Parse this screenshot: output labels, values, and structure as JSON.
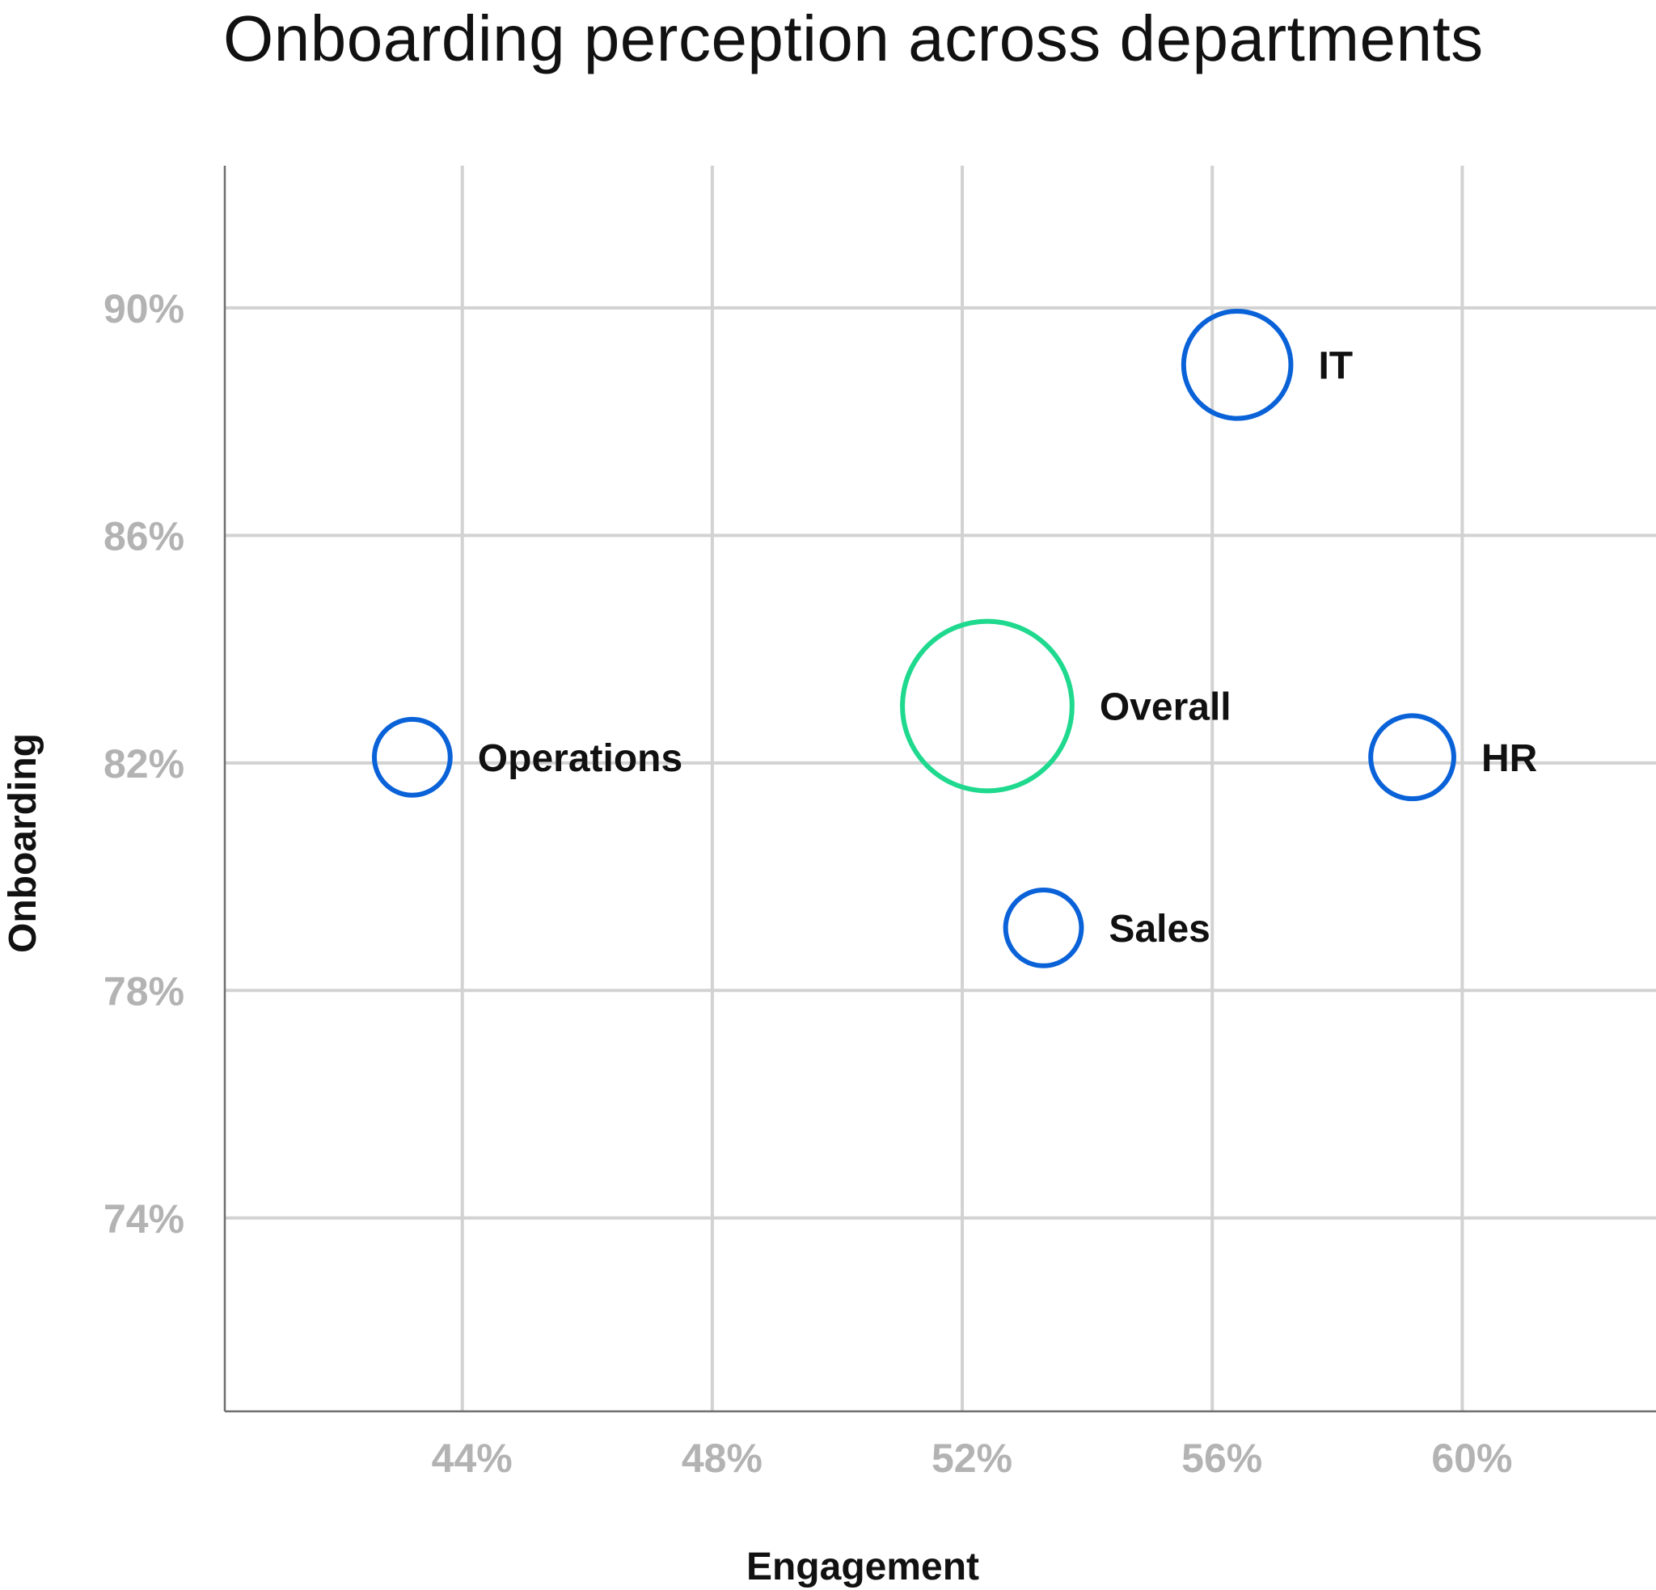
{
  "chart_data": {
    "type": "scatter",
    "title": "Onboarding perception across departments",
    "xlabel": "Engagement",
    "ylabel": "Onboarding",
    "xlim": [
      40.2,
      63.1
    ],
    "ylim": [
      70.6,
      92.5
    ],
    "xticks": [
      44,
      48,
      52,
      56,
      60
    ],
    "yticks": [
      74,
      78,
      82,
      86,
      90
    ],
    "tick_suffix": "%",
    "grid": true,
    "points": [
      {
        "label": "Operations",
        "x": 43.2,
        "y": 82.1,
        "size": 1,
        "color": "#0a62d8"
      },
      {
        "label": "Overall",
        "x": 52.4,
        "y": 83.0,
        "size": 5,
        "color": "#1fd98e"
      },
      {
        "label": "Sales",
        "x": 53.3,
        "y": 79.1,
        "size": 1,
        "color": "#0a62d8"
      },
      {
        "label": "IT",
        "x": 56.4,
        "y": 89.0,
        "size": 2,
        "color": "#0a62d8"
      },
      {
        "label": "HR",
        "x": 59.2,
        "y": 82.1,
        "size": 1.2,
        "color": "#0a62d8"
      }
    ]
  }
}
